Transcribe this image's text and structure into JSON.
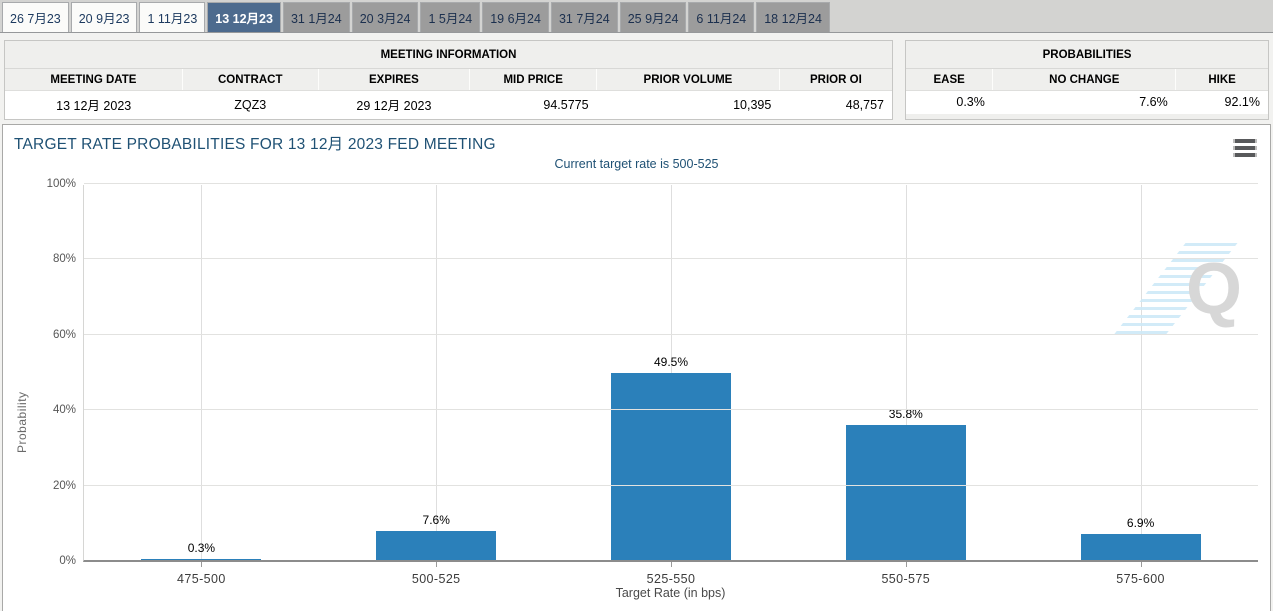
{
  "tabs": {
    "items": [
      {
        "label": "26 7月23",
        "state": "normal"
      },
      {
        "label": "20 9月23",
        "state": "normal"
      },
      {
        "label": "1 11月23",
        "state": "normal"
      },
      {
        "label": "13 12月23",
        "state": "selected"
      },
      {
        "label": "31 1月24",
        "state": "future"
      },
      {
        "label": "20 3月24",
        "state": "future"
      },
      {
        "label": "1 5月24",
        "state": "future"
      },
      {
        "label": "19 6月24",
        "state": "future"
      },
      {
        "label": "31 7月24",
        "state": "future"
      },
      {
        "label": "25 9月24",
        "state": "future"
      },
      {
        "label": "6 11月24",
        "state": "future"
      },
      {
        "label": "18 12月24",
        "state": "future"
      }
    ]
  },
  "meeting_info": {
    "title": "MEETING INFORMATION",
    "columns": [
      {
        "label": "MEETING DATE",
        "align": "center",
        "width": "20%"
      },
      {
        "label": "CONTRACT",
        "align": "center",
        "width": "15.3%"
      },
      {
        "label": "EXPIRES",
        "align": "center",
        "width": "17.1%"
      },
      {
        "label": "MID PRICE",
        "align": "right",
        "width": "14.3%"
      },
      {
        "label": "PRIOR VOLUME",
        "align": "right",
        "width": "20.6%"
      },
      {
        "label": "PRIOR OI",
        "align": "right",
        "width": "12.7%"
      }
    ],
    "values": [
      "13 12月 2023",
      "ZQZ3",
      "29 12月 2023",
      "94.5775",
      "10,395",
      "48,757"
    ]
  },
  "probabilities": {
    "title": "PROBABILITIES",
    "columns": [
      {
        "label": "EASE",
        "align": "right",
        "width": "24%"
      },
      {
        "label": "NO CHANGE",
        "align": "right",
        "width": "50.5%"
      },
      {
        "label": "HIKE",
        "align": "right",
        "width": "25.5%"
      }
    ],
    "values": [
      "0.3%",
      "7.6%",
      "92.1%"
    ]
  },
  "chart_data": {
    "type": "bar",
    "title": "TARGET RATE PROBABILITIES FOR 13 12月 2023 FED MEETING",
    "subtitle": "Current target rate is 500-525",
    "categories": [
      "475-500",
      "500-525",
      "525-550",
      "550-575",
      "575-600"
    ],
    "values": [
      0.3,
      7.6,
      49.5,
      35.8,
      6.9
    ],
    "value_labels": [
      "0.3%",
      "7.6%",
      "49.5%",
      "35.8%",
      "6.9%"
    ],
    "xlabel": "Target Rate (in bps)",
    "ylabel": "Probability",
    "ylim": [
      0,
      100
    ],
    "ytick_step": 20,
    "grid": true,
    "legend": false,
    "bar_color": "#2b80ba",
    "watermark_letter": "Q"
  },
  "colors": {
    "selected_tab_bg": "#4d6b8e",
    "future_tab_bg": "#9c9c9c",
    "chart_title_text": "#1f5174",
    "bar": "#2b80ba"
  }
}
